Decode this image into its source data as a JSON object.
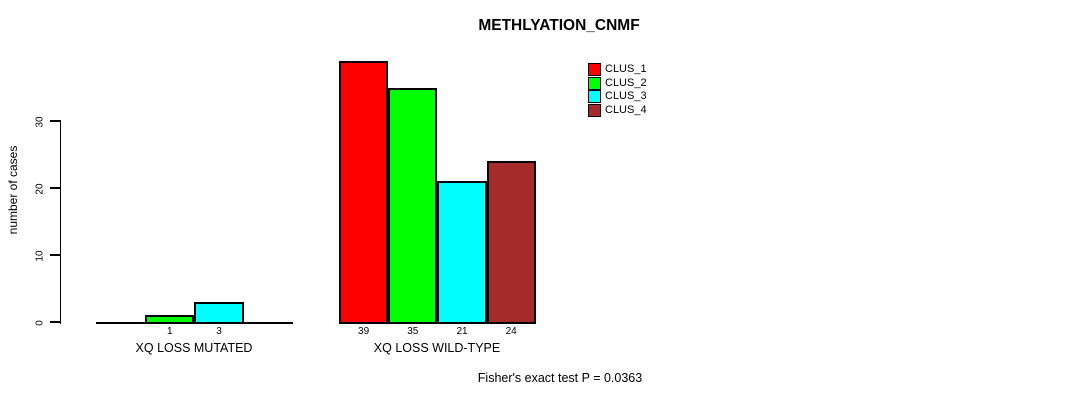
{
  "chart_data": {
    "type": "bar",
    "title": "METHLYATION_CNMF",
    "ylabel": "number of cases",
    "xlabel": "",
    "yticks": [
      0,
      10,
      20,
      30
    ],
    "ylim": [
      0,
      40
    ],
    "grid": false,
    "legend_position": "top-right",
    "categories": [
      "XQ LOSS MUTATED",
      "XQ LOSS WILD-TYPE"
    ],
    "series": [
      {
        "name": "CLUS_1",
        "color": "#FF0000",
        "values": [
          0,
          39
        ]
      },
      {
        "name": "CLUS_2",
        "color": "#00FF00",
        "values": [
          1,
          35
        ]
      },
      {
        "name": "CLUS_3",
        "color": "#00FFFF",
        "values": [
          3,
          21
        ]
      },
      {
        "name": "CLUS_4",
        "color": "#A52A2A",
        "values": [
          0,
          24
        ]
      }
    ],
    "bar_value_labels_shown_for_nonzero_only": true,
    "annotation": "Fisher's exact test P = 0.0363"
  },
  "colors": {
    "background": "#FFFFFF",
    "axis": "#000000",
    "text": "#000000"
  }
}
